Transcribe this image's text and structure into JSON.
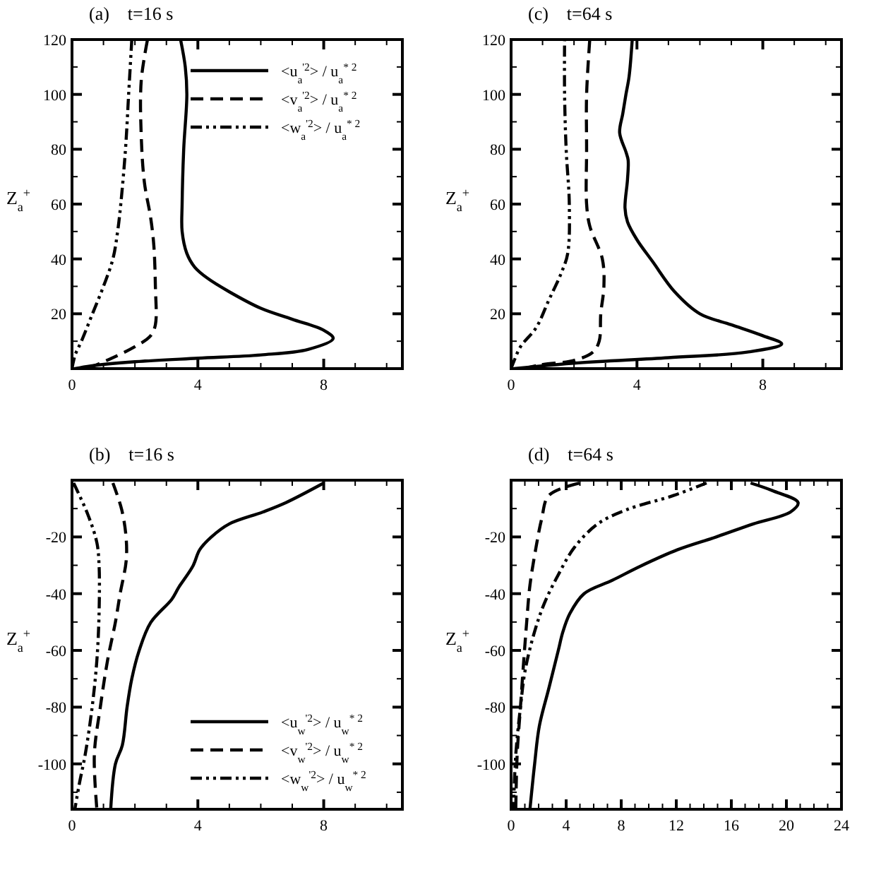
{
  "chart_data": [
    {
      "type": "line",
      "title": "(a)    t=16 s",
      "ylabel": "Z$_{a}$$^{+}$",
      "xlim": [
        0,
        10.5
      ],
      "ylim": [
        0,
        120
      ],
      "legend": "top right",
      "grid": false,
      "xticks": [
        0,
        {
          "value": 1,
          "label": null
        },
        {
          "value": 2,
          "label": null
        },
        {
          "value": 3,
          "label": null
        },
        4,
        {
          "value": 5,
          "label": null
        },
        {
          "value": 6,
          "label": null
        },
        {
          "value": 7,
          "label": null
        },
        8,
        {
          "value": 9,
          "label": null
        },
        {
          "value": 10,
          "label": null
        }
      ],
      "yticks": [
        {
          "value": 10,
          "label": null
        },
        20,
        {
          "value": 30,
          "label": null
        },
        40,
        {
          "value": 50,
          "label": null
        },
        60,
        {
          "value": 70,
          "label": null
        },
        80,
        {
          "value": 90,
          "label": null
        },
        100,
        {
          "value": 110,
          "label": null
        },
        120
      ],
      "series": [
        {
          "name": "<u$_{a}$$^{'2}$> / u$_{a}$$^{* 2}$",
          "color": "#000000",
          "line_style": "solid",
          "x": [
            0.1,
            0.6,
            2,
            4,
            6,
            7.5,
            8.3,
            8,
            7,
            6,
            5,
            4.3,
            3.9,
            3.65,
            3.5,
            3.5,
            3.55,
            3.65,
            3.6,
            3.45
          ],
          "values": [
            0,
            1,
            2.5,
            3.8,
            5,
            7,
            11,
            14,
            18,
            22,
            28,
            33,
            37,
            42,
            50,
            60,
            80,
            100,
            110,
            120
          ]
        },
        {
          "name": "<v$_{a}$$^{'2}$> / u$_{a}$$^{* 2}$",
          "color": "#000000",
          "line_style": "dashed",
          "x": [
            0.5,
            0.8,
            1.3,
            2,
            2.5,
            2.65,
            2.65,
            2.6,
            2.5,
            2.3,
            2.2,
            2.2,
            2.4
          ],
          "values": [
            0.3,
            1.5,
            4,
            8,
            12,
            16,
            30,
            45,
            55,
            68,
            85,
            105,
            120
          ]
        },
        {
          "name": "<w$_{a}$$^{'2}$> / u$_{a}$$^{* 2}$",
          "color": "#000000",
          "line_style": "dashdot",
          "x": [
            0,
            0.1,
            0.3,
            0.65,
            1,
            1.3,
            1.45,
            1.55,
            1.7,
            1.8,
            1.9
          ],
          "values": [
            0,
            5,
            10,
            20,
            30,
            40,
            50,
            60,
            80,
            100,
            120
          ]
        }
      ]
    },
    {
      "type": "line",
      "title": "(c)    t=64 s",
      "ylabel": "Z$_{a}$$^{+}$",
      "xlim": [
        0,
        10.5
      ],
      "ylim": [
        0,
        120
      ],
      "legend": false,
      "grid": false,
      "xticks": [
        0,
        {
          "value": 1,
          "label": null
        },
        {
          "value": 2,
          "label": null
        },
        {
          "value": 3,
          "label": null
        },
        4,
        {
          "value": 5,
          "label": null
        },
        {
          "value": 6,
          "label": null
        },
        {
          "value": 7,
          "label": null
        },
        8,
        {
          "value": 9,
          "label": null
        },
        {
          "value": 10,
          "label": null
        }
      ],
      "yticks": [
        {
          "value": 10,
          "label": null
        },
        20,
        {
          "value": 30,
          "label": null
        },
        40,
        {
          "value": 50,
          "label": null
        },
        60,
        {
          "value": 70,
          "label": null
        },
        80,
        {
          "value": 90,
          "label": null
        },
        100,
        {
          "value": 110,
          "label": null
        },
        120
      ],
      "series": [
        {
          "color": "#000000",
          "line_style": "solid",
          "x": [
            0.1,
            2,
            5,
            7.5,
            8.6,
            8,
            7,
            6,
            5.2,
            4.5,
            4,
            3.7,
            3.62,
            3.7,
            3.72,
            3.65,
            3.45,
            3.55,
            3.65,
            3.75,
            3.85
          ],
          "values": [
            0,
            2,
            4,
            6,
            9,
            12,
            16,
            20,
            28,
            39,
            47,
            53.5,
            58.6,
            69,
            76,
            79,
            86,
            93,
            100,
            106.5,
            120
          ]
        },
        {
          "color": "#000000",
          "line_style": "dashed",
          "x": [
            0.4,
            1,
            2,
            2.6,
            2.8,
            2.85,
            2.95,
            2.9,
            2.5,
            2.4,
            2.4,
            2.4,
            2.5
          ],
          "values": [
            0,
            1.5,
            3,
            6,
            10,
            20,
            30,
            40,
            52,
            60,
            80,
            100,
            120
          ]
        },
        {
          "color": "#000000",
          "line_style": "dashdot",
          "x": [
            0,
            0.1,
            0.3,
            0.8,
            1.2,
            1.6,
            1.8,
            1.85,
            1.75,
            1.7,
            1.7
          ],
          "values": [
            0,
            3,
            8,
            15,
            25,
            35,
            42,
            60,
            80,
            100,
            120
          ]
        }
      ]
    },
    {
      "type": "line",
      "title": "(b)    t=16 s",
      "ylabel": "Z$_{a}$$^{+}$",
      "xlim": [
        0,
        10.5
      ],
      "ylim": [
        -116,
        0
      ],
      "legend": "bottom right",
      "grid": false,
      "xticks": [
        0,
        {
          "value": 1,
          "label": null
        },
        {
          "value": 2,
          "label": null
        },
        {
          "value": 3,
          "label": null
        },
        4,
        {
          "value": 5,
          "label": null
        },
        {
          "value": 6,
          "label": null
        },
        {
          "value": 7,
          "label": null
        },
        8,
        {
          "value": 9,
          "label": null
        },
        {
          "value": 10,
          "label": null
        }
      ],
      "yticks": [
        {
          "value": -110,
          "label": null
        },
        -100,
        {
          "value": -90,
          "label": null
        },
        -80,
        {
          "value": -70,
          "label": null
        },
        -60,
        {
          "value": -50,
          "label": null
        },
        -40,
        {
          "value": -30,
          "label": null
        },
        -20,
        {
          "value": -10,
          "label": null
        }
      ],
      "series": [
        {
          "name": "<u$_{w}$$^{'2}$> / u$_{w}$$^{* 2}$",
          "color": "#000000",
          "line_style": "solid",
          "x": [
            8,
            6.8,
            6.07,
            5,
            4.43,
            4.06,
            3.84,
            3.39,
            3.17,
            2.5,
            2.13,
            1.9,
            1.75,
            1.6,
            1.38,
            1.23
          ],
          "values": [
            -1,
            -7.9,
            -11.2,
            -15.4,
            -20,
            -24.5,
            -30.3,
            -37.8,
            -42,
            -50.2,
            -60.2,
            -70,
            -80,
            -93.4,
            -100,
            -116
          ]
        },
        {
          "name": "<v$_{w}$$^{'2}$> / u$_{w}$$^{* 2}$",
          "color": "#000000",
          "line_style": "dashed",
          "x": [
            1.3,
            1.58,
            1.72,
            1.72,
            1.53,
            1.38,
            1.13,
            0.9,
            0.71,
            0.79
          ],
          "values": [
            -1,
            -10.4,
            -20.3,
            -28.6,
            -40,
            -50,
            -63.5,
            -80,
            -96.7,
            -116
          ]
        },
        {
          "name": "<w$_{w}$$^{'2}$> / u$_{w}$$^{* 2}$",
          "color": "#000000",
          "line_style": "dashdot",
          "x": [
            0.05,
            0.5,
            0.79,
            0.86,
            0.86,
            0.79,
            0.64,
            0.42,
            0.24,
            0.09
          ],
          "values": [
            -1,
            -12,
            -22,
            -30,
            -47,
            -63.5,
            -80,
            -96.7,
            -106.6,
            -116
          ]
        }
      ]
    },
    {
      "type": "line",
      "title": "(d)    t=64 s",
      "ylabel": "Z$_{a}$$^{+}$",
      "xlim": [
        0,
        24
      ],
      "ylim": [
        -116,
        0
      ],
      "legend": false,
      "grid": false,
      "xticks": [
        0,
        {
          "value": 1,
          "label": null
        },
        {
          "value": 2,
          "label": null
        },
        {
          "value": 3,
          "label": null
        },
        4,
        {
          "value": 5,
          "label": null
        },
        {
          "value": 6,
          "label": null
        },
        {
          "value": 7,
          "label": null
        },
        8,
        {
          "value": 9,
          "label": null
        },
        {
          "value": 10,
          "label": null
        },
        {
          "value": 11,
          "label": null
        },
        12,
        {
          "value": 13,
          "label": null
        },
        {
          "value": 14,
          "label": null
        },
        {
          "value": 15,
          "label": null
        },
        16,
        {
          "value": 17,
          "label": null
        },
        {
          "value": 18,
          "label": null
        },
        {
          "value": 19,
          "label": null
        },
        20,
        {
          "value": 21,
          "label": null
        },
        {
          "value": 22,
          "label": null
        },
        {
          "value": 23,
          "label": null
        },
        24
      ],
      "yticks": [
        {
          "value": -110,
          "label": null
        },
        -100,
        {
          "value": -90,
          "label": null
        },
        -80,
        {
          "value": -70,
          "label": null
        },
        -60,
        {
          "value": -50,
          "label": null
        },
        -40,
        {
          "value": -30,
          "label": null
        },
        -20,
        {
          "value": -10,
          "label": null
        }
      ],
      "series": [
        {
          "color": "#000000",
          "line_style": "solid",
          "x": [
            17.4,
            19,
            20.85,
            20.3,
            17.6,
            14.9,
            12.1,
            9.4,
            7.35,
            5.3,
            4.27,
            3.76,
            3.42,
            2.74,
            2.05,
            1.71,
            1.37
          ],
          "values": [
            -1,
            -3.7,
            -7.9,
            -11.2,
            -15.4,
            -20,
            -24.5,
            -30.3,
            -35.3,
            -40,
            -47,
            -53.5,
            -60.2,
            -73.4,
            -86.7,
            -100,
            -116
          ]
        },
        {
          "color": "#000000",
          "line_style": "dashed",
          "x": [
            4.96,
            2.74,
            2.22,
            1.81,
            1.37,
            1.13,
            0.92,
            0.68,
            0.44,
            0.34
          ],
          "values": [
            -1,
            -5.4,
            -13.7,
            -23.7,
            -37,
            -50.2,
            -63.5,
            -80,
            -96.7,
            -116
          ]
        },
        {
          "color": "#000000",
          "line_style": "dashdot",
          "x": [
            14.2,
            11.8,
            8.4,
            6.3,
            4.6,
            3.4,
            2.4,
            1.7,
            1.03,
            0.68,
            0.34,
            0.17
          ],
          "values": [
            -1,
            -5.4,
            -10.4,
            -15.4,
            -23.7,
            -33.6,
            -43.6,
            -53.5,
            -66.8,
            -80,
            -96.7,
            -116
          ]
        }
      ]
    }
  ]
}
